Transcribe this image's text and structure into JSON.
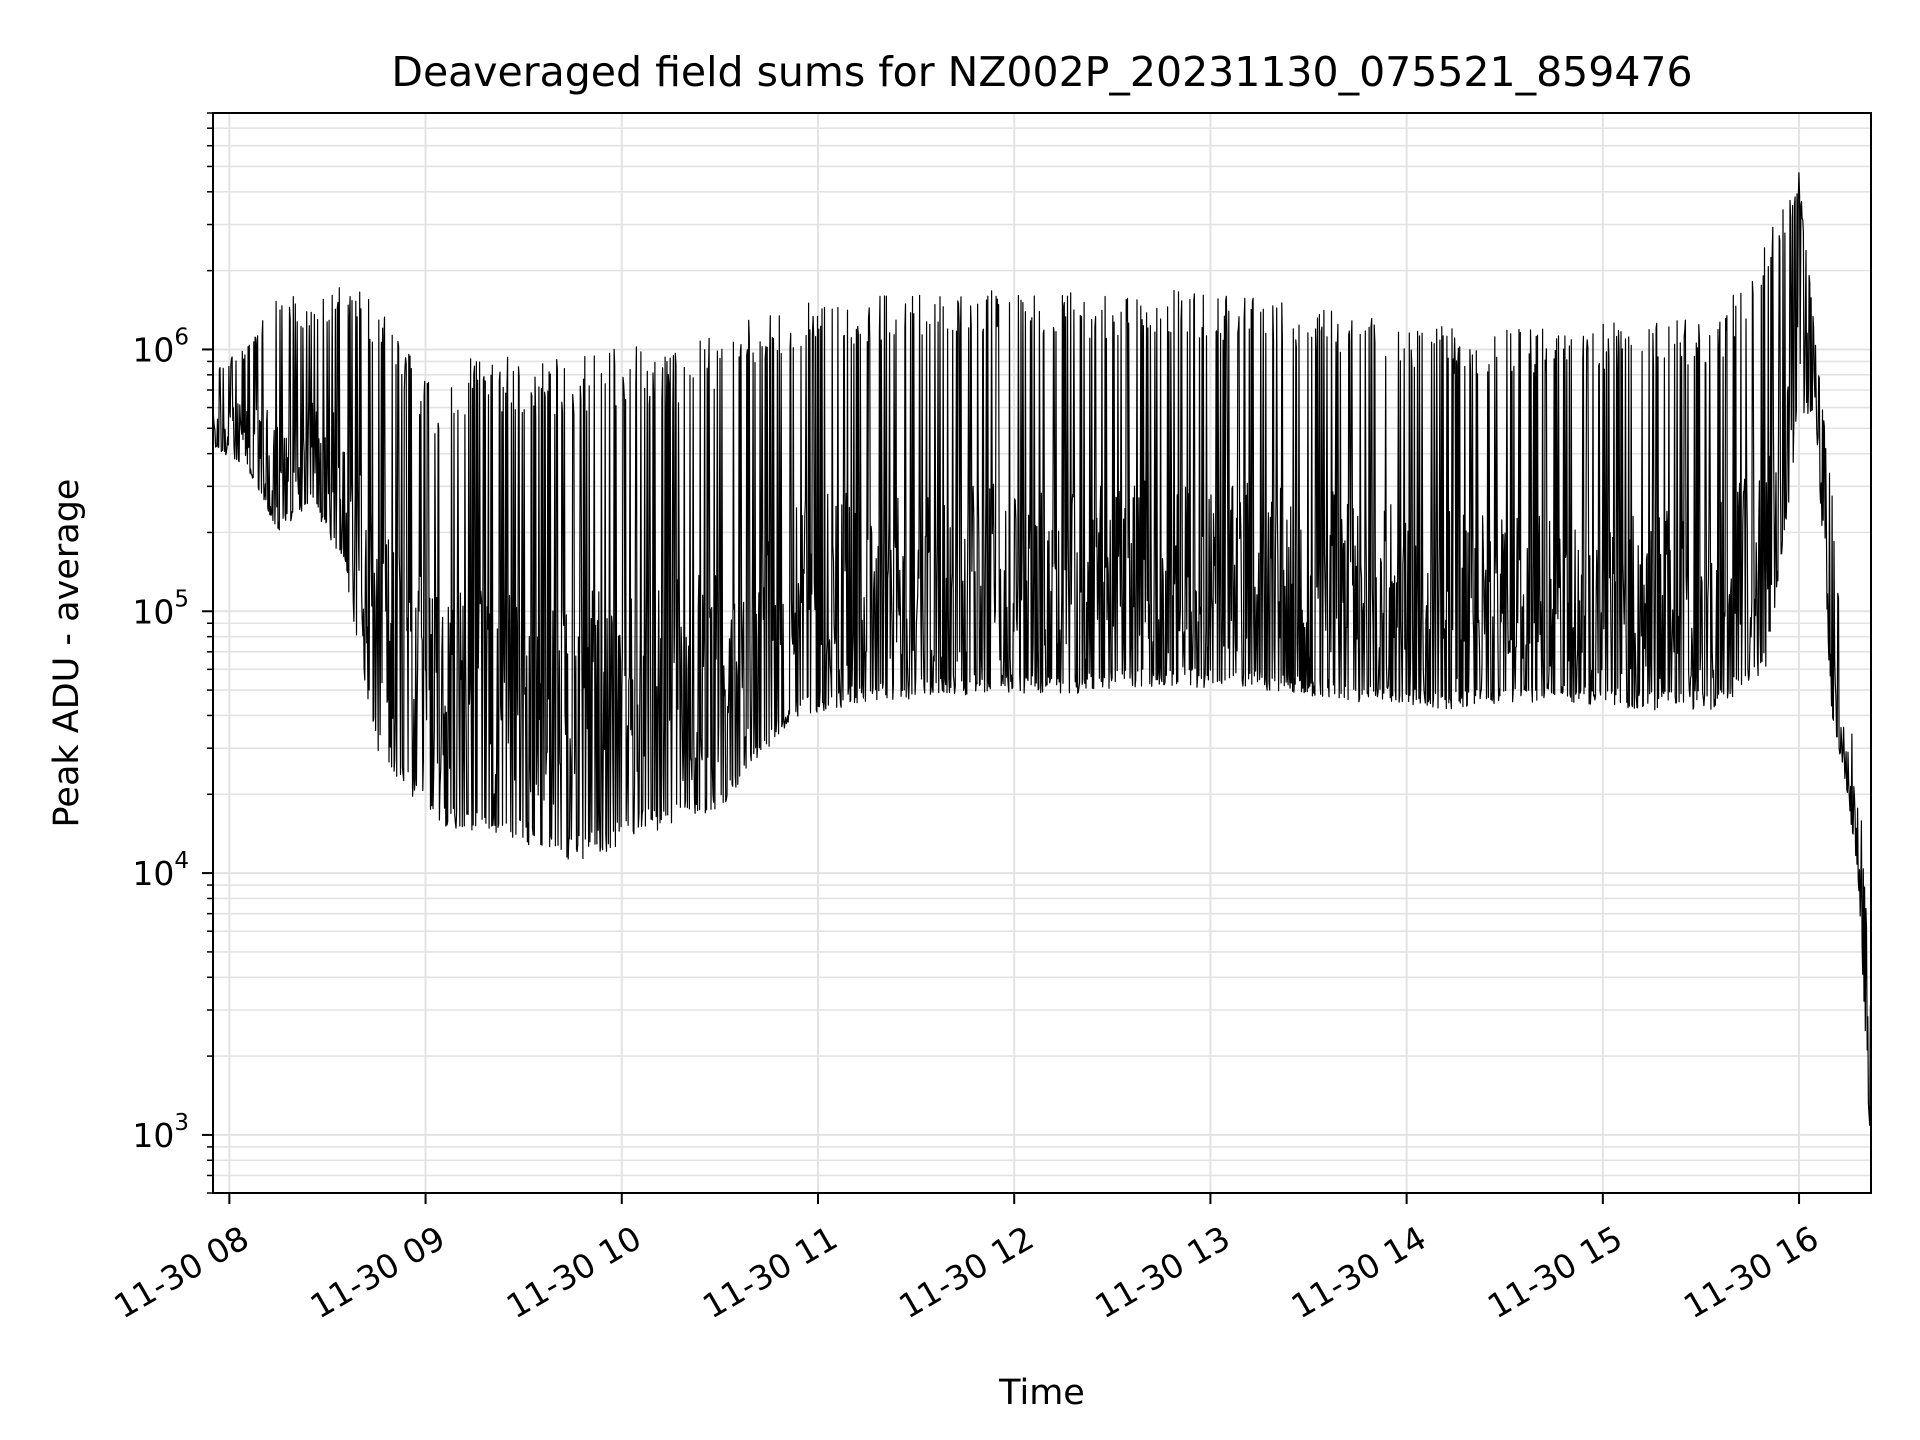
{
  "chart_data": {
    "type": "line",
    "title": "Deaveraged field sums for NZ002P_20231130_075521_859476",
    "xlabel": "Time",
    "ylabel": "Peak ADU - average",
    "y_scale": "log",
    "ylim": [
      600,
      8000000
    ],
    "x_range": [
      "2023-11-30 07:55",
      "2023-11-30 16:22"
    ],
    "x_ticks": [
      {
        "value": "2023-11-30 08:00",
        "label": "11-30 08"
      },
      {
        "value": "2023-11-30 09:00",
        "label": "11-30 09"
      },
      {
        "value": "2023-11-30 10:00",
        "label": "11-30 10"
      },
      {
        "value": "2023-11-30 11:00",
        "label": "11-30 11"
      },
      {
        "value": "2023-11-30 12:00",
        "label": "11-30 12"
      },
      {
        "value": "2023-11-30 13:00",
        "label": "11-30 13"
      },
      {
        "value": "2023-11-30 14:00",
        "label": "11-30 14"
      },
      {
        "value": "2023-11-30 15:00",
        "label": "11-30 15"
      },
      {
        "value": "2023-11-30 16:00",
        "label": "11-30 16"
      }
    ],
    "y_ticks": [
      {
        "value": 1000,
        "base": "10",
        "exp": "3"
      },
      {
        "value": 10000,
        "base": "10",
        "exp": "4"
      },
      {
        "value": 100000,
        "base": "10",
        "exp": "5"
      },
      {
        "value": 1000000,
        "base": "10",
        "exp": "6"
      }
    ],
    "grid": true,
    "grid_color": "#e3e3e3",
    "line_color": "#000000",
    "series": [
      {
        "envelope": [
          {
            "t": "2023-11-30 07:55",
            "low": 420000,
            "high": 900000
          },
          {
            "t": "2023-11-30 08:05",
            "low": 360000,
            "high": 1000000
          },
          {
            "t": "2023-11-30 08:15",
            "low": 200000,
            "high": 1800000
          },
          {
            "t": "2023-11-30 08:25",
            "low": 260000,
            "high": 1400000
          },
          {
            "t": "2023-11-30 08:35",
            "low": 150000,
            "high": 1900000
          },
          {
            "t": "2023-11-30 08:45",
            "low": 30000,
            "high": 1500000
          },
          {
            "t": "2023-11-30 08:55",
            "low": 20000,
            "high": 1000000
          },
          {
            "t": "2023-11-30 09:05",
            "low": 15000,
            "high": 700000
          },
          {
            "t": "2023-11-30 09:15",
            "low": 14000,
            "high": 1000000
          },
          {
            "t": "2023-11-30 09:25",
            "low": 14000,
            "high": 950000
          },
          {
            "t": "2023-11-30 09:35",
            "low": 12000,
            "high": 900000
          },
          {
            "t": "2023-11-30 09:45",
            "low": 11000,
            "high": 950000
          },
          {
            "t": "2023-11-30 09:55",
            "low": 12000,
            "high": 1000000
          },
          {
            "t": "2023-11-30 10:05",
            "low": 14000,
            "high": 1050000
          },
          {
            "t": "2023-11-30 10:15",
            "low": 15000,
            "high": 950000
          },
          {
            "t": "2023-11-30 10:25",
            "low": 16000,
            "high": 1100000
          },
          {
            "t": "2023-11-30 10:35",
            "low": 20000,
            "high": 1300000
          },
          {
            "t": "2023-11-30 10:45",
            "low": 30000,
            "high": 1500000
          },
          {
            "t": "2023-11-30 10:55",
            "low": 40000,
            "high": 1550000
          },
          {
            "t": "2023-11-30 11:15",
            "low": 45000,
            "high": 1600000
          },
          {
            "t": "2023-11-30 11:45",
            "low": 48000,
            "high": 1700000
          },
          {
            "t": "2023-11-30 12:15",
            "low": 48000,
            "high": 1650000
          },
          {
            "t": "2023-11-30 12:45",
            "low": 52000,
            "high": 1700000
          },
          {
            "t": "2023-11-30 13:15",
            "low": 50000,
            "high": 1600000
          },
          {
            "t": "2023-11-30 13:45",
            "low": 45000,
            "high": 1400000
          },
          {
            "t": "2023-11-30 14:15",
            "low": 42000,
            "high": 1200000
          },
          {
            "t": "2023-11-30 14:45",
            "low": 45000,
            "high": 1200000
          },
          {
            "t": "2023-11-30 15:15",
            "low": 42000,
            "high": 1300000
          },
          {
            "t": "2023-11-30 15:35",
            "low": 42000,
            "high": 1300000
          },
          {
            "t": "2023-11-30 15:50",
            "low": 60000,
            "high": 2600000
          },
          {
            "t": "2023-11-30 16:00",
            "low": 500000,
            "high": 4800000
          },
          {
            "t": "2023-11-30 16:05",
            "low": 600000,
            "high": 1100000
          },
          {
            "t": "2023-11-30 16:10",
            "low": 40000,
            "high": 300000
          },
          {
            "t": "2023-11-30 16:14",
            "low": 23000,
            "high": 48000
          },
          {
            "t": "2023-11-30 16:18",
            "low": 10000,
            "high": 30000
          },
          {
            "t": "2023-11-30 16:22",
            "low": 800,
            "high": 3000
          }
        ]
      }
    ]
  }
}
